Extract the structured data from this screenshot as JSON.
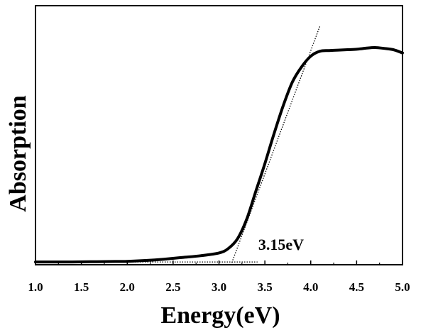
{
  "chart_data": {
    "type": "line",
    "title": "",
    "xlabel": "Energy(eV)",
    "ylabel": "Absorption",
    "xlim": [
      1.0,
      5.0
    ],
    "ylim": [
      0,
      1.0
    ],
    "x_ticks": [
      "1.0",
      "1.5",
      "2.0",
      "2.5",
      "3.0",
      "3.5",
      "4.0",
      "4.5",
      "5.0"
    ],
    "y_ticks_labeled": false,
    "grid": false,
    "legend": "none",
    "line_color": "#000000",
    "series": [
      {
        "x": [
          1.0,
          1.2,
          1.4,
          1.6,
          1.8,
          2.0,
          2.2,
          2.4,
          2.6,
          2.8,
          3.0,
          3.1,
          3.2,
          3.3,
          3.4,
          3.5,
          3.6,
          3.7,
          3.8,
          3.9,
          4.0,
          4.1,
          4.2,
          4.3,
          4.4,
          4.5,
          4.6,
          4.7,
          4.8,
          4.9,
          5.0
        ],
        "y": [
          0.003,
          0.003,
          0.003,
          0.004,
          0.005,
          0.006,
          0.01,
          0.016,
          0.024,
          0.032,
          0.045,
          0.065,
          0.11,
          0.2,
          0.33,
          0.46,
          0.6,
          0.73,
          0.84,
          0.91,
          0.96,
          0.983,
          0.986,
          0.988,
          0.99,
          0.992,
          0.997,
          1.0,
          0.996,
          0.99,
          0.975
        ]
      }
    ],
    "annotations": [
      {
        "text": "3.15eV",
        "x": 3.15
      }
    ],
    "tangent_line": {
      "x": [
        3.14,
        4.1
      ],
      "y": [
        0.0,
        1.1
      ]
    },
    "baseline_line": {
      "x": [
        1.0,
        3.42
      ],
      "y": [
        0.003,
        0.003
      ]
    }
  }
}
